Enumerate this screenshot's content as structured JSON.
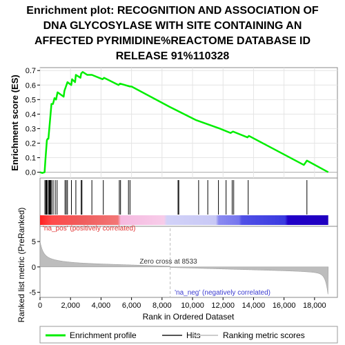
{
  "chart_data": {
    "type": "line",
    "title_lines": [
      "Enrichment plot: RECOGNITION AND ASSOCIATION OF",
      "DNA GLYCOSYLASE WITH SITE CONTAINING AN",
      "AFFECTED PYRIMIDINE%REACTOME DATABASE ID",
      "RELEASE 91%110328"
    ],
    "ylabel_es": "Enrichment score (ES)",
    "ylabel_metric": "Ranked list metric (PreRanked)",
    "xlabel": "Rank in Ordered Dataset",
    "es_yticks": [
      "0.0",
      "0.1",
      "0.2",
      "0.3",
      "0.4",
      "0.5",
      "0.6",
      "0.7"
    ],
    "es_ylim": [
      -0.04,
      0.72
    ],
    "metric_yticks": [
      "-5",
      "0",
      "5"
    ],
    "metric_ylim": [
      -6,
      8
    ],
    "xticks": [
      "0",
      "2,000",
      "4,000",
      "6,000",
      "8,000",
      "10,000",
      "12,000",
      "14,000",
      "16,000",
      "18,000"
    ],
    "xlim": [
      0,
      19500
    ],
    "n_genes": 18900,
    "zero_cross_rank": 8533,
    "zero_cross_label": "Zero cross at 8533",
    "pos_label": "'na_pos' (positively correlated)",
    "neg_label": "'na_neg' (negatively correlated)",
    "series": [
      {
        "name": "Enrichment profile",
        "color": "#00ee00",
        "points": [
          [
            0,
            0.0
          ],
          [
            150,
            -0.005
          ],
          [
            300,
            0.0
          ],
          [
            350,
            0.08
          ],
          [
            400,
            0.15
          ],
          [
            450,
            0.22
          ],
          [
            500,
            0.23
          ],
          [
            550,
            0.23
          ],
          [
            600,
            0.29
          ],
          [
            650,
            0.35
          ],
          [
            700,
            0.41
          ],
          [
            750,
            0.47
          ],
          [
            850,
            0.47
          ],
          [
            950,
            0.51
          ],
          [
            1050,
            0.5
          ],
          [
            1150,
            0.55
          ],
          [
            1550,
            0.52
          ],
          [
            1600,
            0.56
          ],
          [
            1700,
            0.59
          ],
          [
            1800,
            0.62
          ],
          [
            2050,
            0.6
          ],
          [
            2100,
            0.64
          ],
          [
            2300,
            0.62
          ],
          [
            2350,
            0.67
          ],
          [
            2650,
            0.65
          ],
          [
            2700,
            0.68
          ],
          [
            2800,
            0.69
          ],
          [
            3100,
            0.67
          ],
          [
            3400,
            0.67
          ],
          [
            4100,
            0.64
          ],
          [
            4200,
            0.65
          ],
          [
            5150,
            0.6
          ],
          [
            5250,
            0.61
          ],
          [
            5900,
            0.59
          ],
          [
            6000,
            0.59
          ],
          [
            8500,
            0.45
          ],
          [
            10200,
            0.36
          ],
          [
            11800,
            0.3
          ],
          [
            12500,
            0.27
          ],
          [
            12650,
            0.28
          ],
          [
            13600,
            0.24
          ],
          [
            13700,
            0.25
          ],
          [
            17300,
            0.05
          ],
          [
            17500,
            0.08
          ],
          [
            18900,
            0.0
          ]
        ]
      }
    ],
    "hits": [
      320,
      380,
      430,
      470,
      560,
      610,
      650,
      700,
      760,
      860,
      1000,
      1120,
      1640,
      1720,
      1800,
      2060,
      2350,
      2700,
      2750,
      3400,
      4150,
      5200,
      5280,
      5800,
      5900,
      9050,
      9100,
      10400,
      11000,
      11700,
      12200,
      12600,
      12700,
      13650,
      17500
    ],
    "legend": [
      {
        "label": "Enrichment profile",
        "color": "#00ee00"
      },
      {
        "label": "Hits",
        "color": "#555555"
      },
      {
        "label": "Ranking metric scores",
        "color": "#cccccc"
      }
    ]
  }
}
